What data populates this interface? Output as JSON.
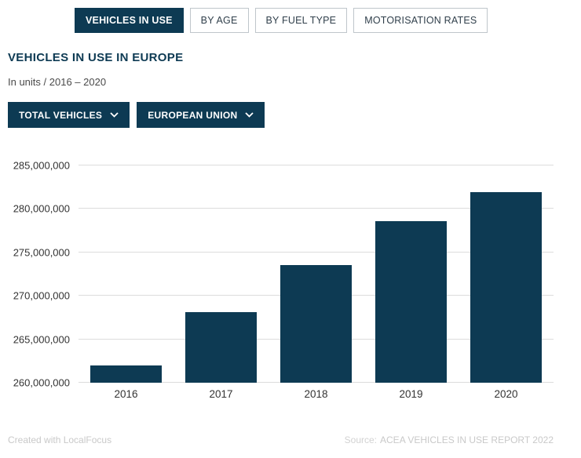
{
  "tabs": [
    {
      "label": "VEHICLES IN USE",
      "active": true
    },
    {
      "label": "BY AGE",
      "active": false
    },
    {
      "label": "BY FUEL TYPE",
      "active": false
    },
    {
      "label": "MOTORISATION RATES",
      "active": false
    }
  ],
  "header": {
    "title": "VEHICLES IN USE IN EUROPE",
    "subtitle": "In units / 2016 – 2020"
  },
  "filters": [
    {
      "label": "TOTAL VEHICLES"
    },
    {
      "label": "EUROPEAN UNION"
    }
  ],
  "chart_data": {
    "type": "bar",
    "title": "VEHICLES IN USE IN EUROPE",
    "categories": [
      "2016",
      "2017",
      "2018",
      "2019",
      "2020"
    ],
    "values": [
      262000000,
      268100000,
      273500000,
      278600000,
      281900000
    ],
    "xlabel": "",
    "ylabel": "",
    "ylim": [
      260000000,
      285000000
    ],
    "yticks": [
      260000000,
      265000000,
      270000000,
      275000000,
      280000000,
      285000000
    ],
    "grid": true,
    "legend": "none",
    "bar_color": "#0d3a53"
  },
  "footer": {
    "credit": "Created with LocalFocus",
    "source_label": "Source:",
    "source": "ACEA VEHICLES IN USE REPORT 2022"
  },
  "colors": {
    "accent": "#0d3a53",
    "grid": "#dcdcdc",
    "footer_text": "#c9c9c9"
  }
}
